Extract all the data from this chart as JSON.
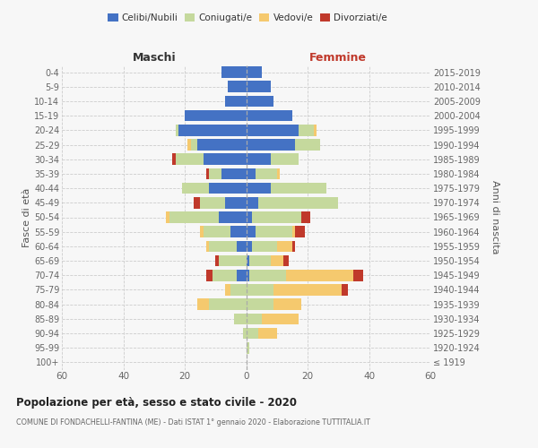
{
  "age_groups": [
    "100+",
    "95-99",
    "90-94",
    "85-89",
    "80-84",
    "75-79",
    "70-74",
    "65-69",
    "60-64",
    "55-59",
    "50-54",
    "45-49",
    "40-44",
    "35-39",
    "30-34",
    "25-29",
    "20-24",
    "15-19",
    "10-14",
    "5-9",
    "0-4"
  ],
  "birth_years": [
    "≤ 1919",
    "1920-1924",
    "1925-1929",
    "1930-1934",
    "1935-1939",
    "1940-1944",
    "1945-1949",
    "1950-1954",
    "1955-1959",
    "1960-1964",
    "1965-1969",
    "1970-1974",
    "1975-1979",
    "1980-1984",
    "1985-1989",
    "1990-1994",
    "1995-1999",
    "2000-2004",
    "2005-2009",
    "2010-2014",
    "2015-2019"
  ],
  "maschi": {
    "celibi": [
      0,
      0,
      0,
      0,
      0,
      0,
      3,
      0,
      3,
      5,
      9,
      7,
      12,
      8,
      14,
      16,
      22,
      20,
      7,
      6,
      8
    ],
    "coniugati": [
      0,
      0,
      1,
      4,
      12,
      5,
      8,
      9,
      9,
      9,
      16,
      8,
      9,
      4,
      9,
      2,
      1,
      0,
      0,
      0,
      0
    ],
    "vedovi": [
      0,
      0,
      0,
      0,
      4,
      2,
      0,
      0,
      1,
      1,
      1,
      0,
      0,
      0,
      0,
      1,
      0,
      0,
      0,
      0,
      0
    ],
    "divorziati": [
      0,
      0,
      0,
      0,
      0,
      0,
      2,
      1,
      0,
      0,
      0,
      2,
      0,
      1,
      1,
      0,
      0,
      0,
      0,
      0,
      0
    ]
  },
  "femmine": {
    "nubili": [
      0,
      0,
      0,
      0,
      0,
      0,
      1,
      1,
      2,
      3,
      2,
      4,
      8,
      3,
      8,
      16,
      17,
      15,
      9,
      8,
      5
    ],
    "coniugate": [
      0,
      1,
      4,
      5,
      9,
      9,
      12,
      7,
      8,
      12,
      16,
      26,
      18,
      7,
      9,
      8,
      5,
      0,
      0,
      0,
      0
    ],
    "vedove": [
      0,
      0,
      6,
      12,
      9,
      22,
      22,
      4,
      5,
      1,
      0,
      0,
      0,
      1,
      0,
      0,
      1,
      0,
      0,
      0,
      0
    ],
    "divorziate": [
      0,
      0,
      0,
      0,
      0,
      2,
      3,
      2,
      1,
      3,
      3,
      0,
      0,
      0,
      0,
      0,
      0,
      0,
      0,
      0,
      0
    ]
  },
  "colors": {
    "celibi": "#4472c4",
    "coniugati": "#c5d99d",
    "vedovi": "#f5c96e",
    "divorziati": "#c0392b"
  },
  "xlim": 60,
  "title": "Popolazione per età, sesso e stato civile - 2020",
  "subtitle": "COMUNE DI FONDACHELLI-FANTINA (ME) - Dati ISTAT 1° gennaio 2020 - Elaborazione TUTTITALIA.IT",
  "maschi_label": "Maschi",
  "femmine_label": "Femmine",
  "ylabel_left": "Fasce di età",
  "ylabel_right": "Anni di nascita",
  "legend_labels": [
    "Celibi/Nubili",
    "Coniugati/e",
    "Vedovi/e",
    "Divorziati/e"
  ],
  "bg_color": "#f7f7f7"
}
